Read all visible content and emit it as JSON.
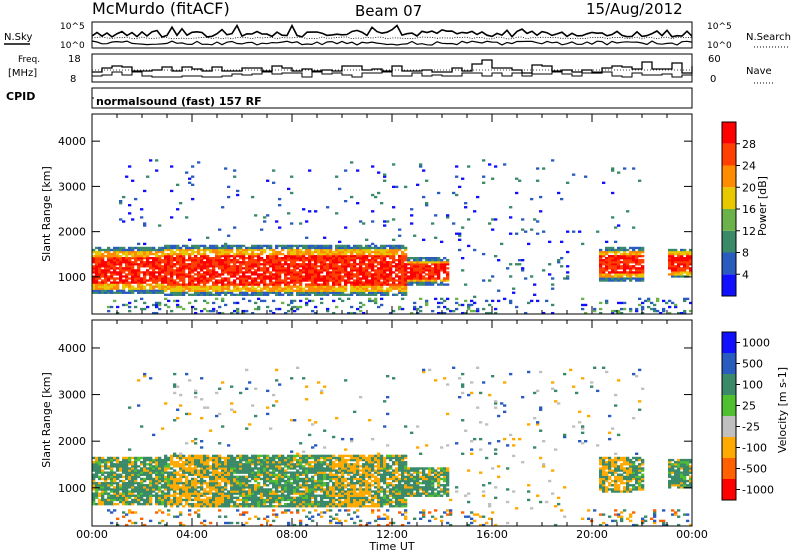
{
  "header": {
    "title": "McMurdo (fitACF)",
    "beam": "Beam 07",
    "date": "15/Aug/2012"
  },
  "top_panels": {
    "nsky_label": "N.Sky",
    "nsky_ticks": [
      "10^5",
      "10^0"
    ],
    "nsearch_label": "N.Search",
    "nsearch_ticks": [
      "10^5",
      "10^0"
    ],
    "freq_label_1": "Freq.",
    "freq_label_2": "[MHz]",
    "freq_ticks": [
      "18",
      "8"
    ],
    "nave_label": "Nave",
    "nave_ticks": [
      "60",
      "0"
    ],
    "cpid_label": "CPID",
    "cpid_value": "normalsound (fast) 157 RF"
  },
  "chart_data": [
    {
      "type": "heatmap",
      "name": "power",
      "ylabel": "Slant Range [km]",
      "yticks": [
        "1000",
        "2000",
        "3000",
        "4000"
      ],
      "ylim": [
        180,
        4600
      ],
      "xlim": [
        "00:00",
        "24:00"
      ],
      "colorbar_label": "Power [dB]",
      "colorbar_ticks": [
        "4",
        "8",
        "12",
        "16",
        "20",
        "24",
        "28"
      ],
      "colorbar_range": [
        0,
        32
      ],
      "colors": [
        "#1010ff",
        "#2a5cc0",
        "#3a8a6a",
        "#6bb24a",
        "#e8c800",
        "#ff8c00",
        "#ff4000",
        "#ff0000"
      ]
    },
    {
      "type": "heatmap",
      "name": "velocity",
      "ylabel": "Slant Range [km]",
      "yticks": [
        "1000",
        "2000",
        "3000",
        "4000"
      ],
      "ylim": [
        180,
        4600
      ],
      "xlim": [
        "00:00",
        "24:00"
      ],
      "xticks": [
        "00:00",
        "04:00",
        "08:00",
        "12:00",
        "16:00",
        "20:00",
        "00:00"
      ],
      "xlabel": "Time UT",
      "colorbar_label": "Velocity [m s-1]",
      "colorbar_ticks": [
        "1000",
        "500",
        "100",
        "25",
        "-25",
        "-100",
        "-500",
        "-1000"
      ],
      "colors": [
        "#1010ff",
        "#2a5cc0",
        "#3a8a6a",
        "#50c030",
        "#c0c0c0",
        "#ffaa00",
        "#ff6000",
        "#ff0000"
      ]
    }
  ]
}
